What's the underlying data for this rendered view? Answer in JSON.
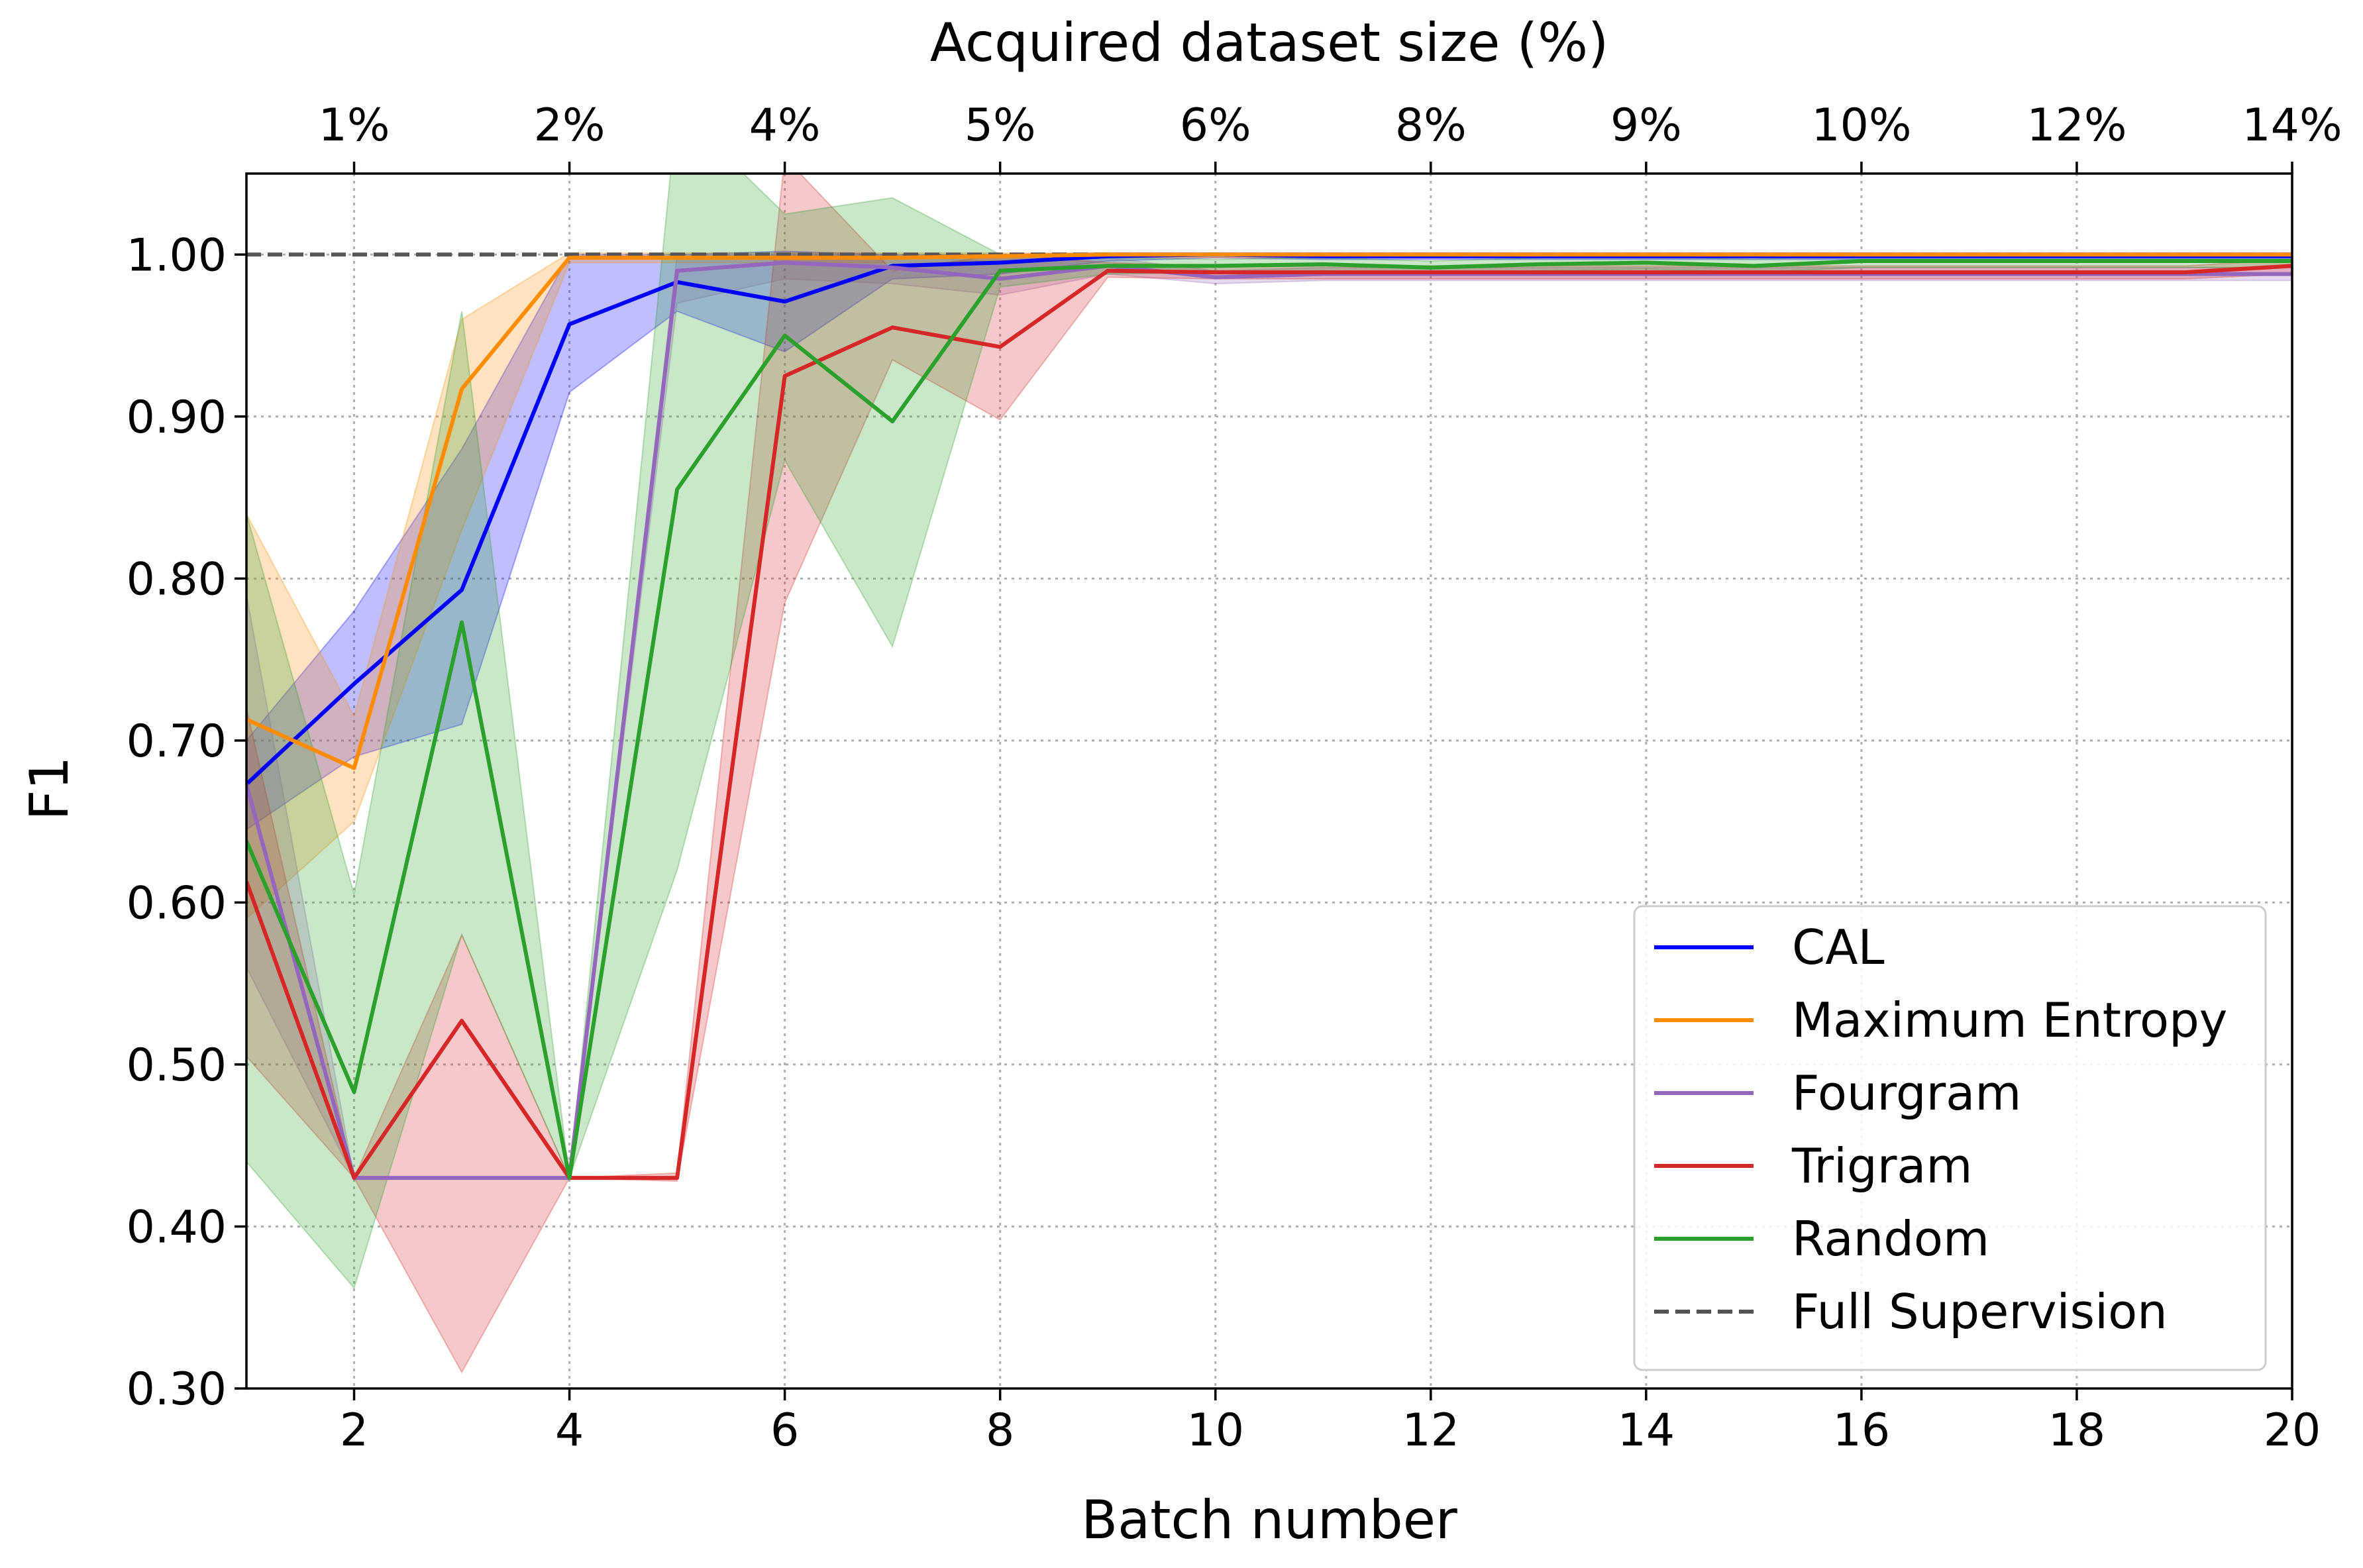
{
  "chart_data": {
    "type": "line",
    "title": "",
    "xlabel": "Batch number",
    "ylabel": "F1",
    "top_xlabel": "Acquired dataset size (%)",
    "xlim": [
      1,
      20
    ],
    "ylim": [
      0.3,
      1.05
    ],
    "x_ticks": [
      2,
      4,
      6,
      8,
      10,
      12,
      14,
      16,
      18,
      20
    ],
    "x_tick_labels": [
      "2",
      "4",
      "6",
      "8",
      "10",
      "12",
      "14",
      "16",
      "18",
      "20"
    ],
    "y_ticks": [
      0.3,
      0.4,
      0.5,
      0.6,
      0.7,
      0.8,
      0.9,
      1.0
    ],
    "y_tick_labels": [
      "0.30",
      "0.40",
      "0.50",
      "0.60",
      "0.70",
      "0.80",
      "0.90",
      "1.00"
    ],
    "top_ticks": [
      2,
      4,
      6,
      8,
      10,
      12,
      14,
      16,
      18,
      20
    ],
    "top_tick_labels": [
      "1%",
      "2%",
      "4%",
      "5%",
      "6%",
      "8%",
      "9%",
      "10%",
      "12%",
      "14%"
    ],
    "grid": true,
    "legend_position": "bottom-right",
    "x": [
      1,
      2,
      3,
      4,
      5,
      6,
      7,
      8,
      9,
      10,
      11,
      12,
      13,
      14,
      15,
      16,
      17,
      18,
      19,
      20
    ],
    "series": [
      {
        "name": "CAL",
        "color": "#0000ff",
        "values": [
          0.673,
          0.735,
          0.793,
          0.957,
          0.983,
          0.971,
          0.993,
          0.995,
          0.999,
          1.0,
          0.999,
          0.999,
          0.999,
          0.999,
          0.999,
          0.999,
          0.999,
          0.999,
          0.999,
          0.999
        ],
        "lower": [
          0.645,
          0.69,
          0.71,
          0.915,
          0.965,
          0.94,
          0.985,
          0.988,
          0.996,
          0.998,
          0.997,
          0.997,
          0.997,
          0.997,
          0.997,
          0.997,
          0.997,
          0.997,
          0.997,
          0.997
        ],
        "upper": [
          0.7,
          0.78,
          0.88,
          1.0,
          1.0,
          1.002,
          1.0,
          1.0,
          1.001,
          1.001,
          1.001,
          1.001,
          1.001,
          1.001,
          1.001,
          1.001,
          1.001,
          1.001,
          1.001,
          1.001
        ]
      },
      {
        "name": "Maximum Entropy",
        "color": "#ff8c00",
        "values": [
          0.713,
          0.683,
          0.917,
          0.998,
          0.998,
          0.998,
          0.998,
          0.999,
          1.0,
          1.0,
          1.0,
          1.0,
          1.0,
          1.0,
          1.0,
          1.0,
          1.0,
          1.0,
          1.0,
          1.0
        ],
        "lower": [
          0.59,
          0.65,
          0.83,
          0.995,
          0.995,
          0.995,
          0.995,
          0.996,
          0.998,
          0.998,
          0.998,
          0.998,
          0.998,
          0.998,
          0.998,
          0.998,
          0.998,
          0.998,
          0.998,
          0.998
        ],
        "upper": [
          0.84,
          0.715,
          0.96,
          1.001,
          1.001,
          1.001,
          1.001,
          1.001,
          1.001,
          1.001,
          1.001,
          1.001,
          1.001,
          1.001,
          1.001,
          1.001,
          1.001,
          1.001,
          1.001,
          1.001
        ]
      },
      {
        "name": "Fourgram",
        "color": "#9467bd",
        "values": [
          0.673,
          0.43,
          0.43,
          0.43,
          0.99,
          0.995,
          0.992,
          0.985,
          0.993,
          0.986,
          0.988,
          0.988,
          0.988,
          0.988,
          0.988,
          0.988,
          0.988,
          0.988,
          0.988,
          0.988
        ],
        "lower": [
          0.56,
          0.43,
          0.43,
          0.43,
          0.97,
          0.985,
          0.982,
          0.975,
          0.988,
          0.982,
          0.984,
          0.984,
          0.984,
          0.984,
          0.984,
          0.984,
          0.984,
          0.984,
          0.984,
          0.984
        ],
        "upper": [
          0.79,
          0.43,
          0.43,
          0.43,
          1.0,
          1.0,
          1.0,
          0.995,
          0.998,
          0.99,
          0.992,
          0.992,
          0.992,
          0.992,
          0.992,
          0.992,
          0.992,
          0.992,
          0.992,
          0.992
        ]
      },
      {
        "name": "Trigram",
        "color": "#d62728",
        "values": [
          0.613,
          0.43,
          0.527,
          0.43,
          0.43,
          0.925,
          0.955,
          0.943,
          0.99,
          0.989,
          0.989,
          0.989,
          0.989,
          0.989,
          0.989,
          0.989,
          0.989,
          0.989,
          0.989,
          0.993
        ],
        "lower": [
          0.505,
          0.43,
          0.31,
          0.43,
          0.428,
          0.785,
          0.935,
          0.898,
          0.986,
          0.985,
          0.985,
          0.985,
          0.985,
          0.985,
          0.985,
          0.985,
          0.985,
          0.985,
          0.985,
          0.988
        ],
        "upper": [
          0.72,
          0.43,
          0.58,
          0.43,
          0.433,
          1.06,
          0.99,
          1.0,
          0.995,
          0.993,
          0.993,
          0.993,
          0.993,
          0.993,
          0.993,
          0.993,
          0.993,
          0.993,
          0.993,
          0.997
        ]
      },
      {
        "name": "Random",
        "color": "#2ca02c",
        "values": [
          0.638,
          0.483,
          0.773,
          0.43,
          0.855,
          0.95,
          0.897,
          0.99,
          0.993,
          0.993,
          0.994,
          0.992,
          0.994,
          0.995,
          0.993,
          0.996,
          0.996,
          0.996,
          0.996,
          0.996
        ],
        "lower": [
          0.44,
          0.362,
          0.58,
          0.43,
          0.62,
          0.873,
          0.758,
          0.98,
          0.988,
          0.989,
          0.99,
          0.988,
          0.99,
          0.991,
          0.989,
          0.992,
          0.992,
          0.992,
          0.992,
          0.992
        ],
        "upper": [
          0.84,
          0.605,
          0.965,
          0.43,
          1.09,
          1.025,
          1.035,
          1.0,
          0.998,
          0.997,
          0.998,
          0.996,
          0.998,
          0.999,
          0.997,
          1.0,
          1.0,
          1.0,
          1.0,
          1.0
        ]
      }
    ],
    "reference_lines": [
      {
        "name": "Full Supervision",
        "y": 1.0,
        "color": "#555555",
        "style": "dashed"
      }
    ]
  }
}
